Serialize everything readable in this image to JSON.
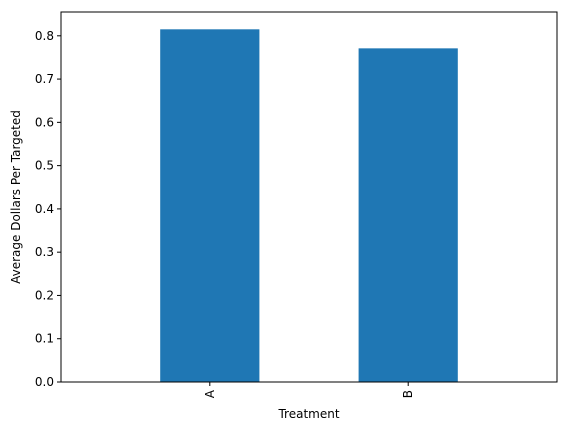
{
  "chart_data": {
    "type": "bar",
    "categories": [
      "A",
      "B"
    ],
    "values": [
      0.815,
      0.771
    ],
    "title": "",
    "xlabel": "Treatment",
    "ylabel": "Average Dollars Per Targeted",
    "ylim": [
      0,
      0.855
    ],
    "yticks": [
      "0.0",
      "0.1",
      "0.2",
      "0.3",
      "0.4",
      "0.5",
      "0.6",
      "0.7",
      "0.8"
    ],
    "ytick_values": [
      0,
      0.1,
      0.2,
      0.3,
      0.4,
      0.5,
      0.6,
      0.7,
      0.8
    ],
    "grid": false,
    "legend": "none",
    "bar_color": "#1f77b4"
  }
}
